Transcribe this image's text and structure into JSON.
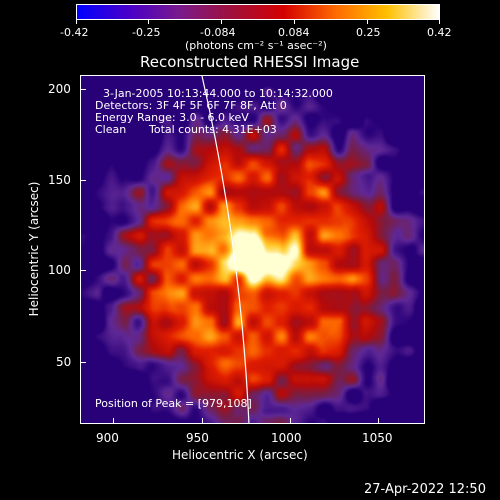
{
  "colorbar": {
    "ticks": [
      "-0.42",
      "-0.25",
      "-0.084",
      "0.084",
      "0.25",
      "0.42"
    ],
    "units": "(photons cm⁻² s⁻¹ asec⁻²)",
    "colors": [
      "#0000ff",
      "#4a00c8",
      "#7a1a8a",
      "#a0103a",
      "#d40000",
      "#ff6a00",
      "#ffc000",
      "#ffffff"
    ]
  },
  "plot": {
    "title": "Reconstructed RHESSI Image",
    "xlabel": "Heliocentric X (arcsec)",
    "ylabel": "Heliocentric Y (arcsec)",
    "xticks": [
      "900",
      "950",
      "1000",
      "1050"
    ],
    "yticks": [
      "200",
      "150",
      "100",
      "50"
    ],
    "xrange": [
      881,
      1072
    ],
    "yrange": [
      16,
      209
    ],
    "info": {
      "time": "3-Jan-2005 10:13:44.000 to 10:14:32.000",
      "detectors": "Detectors: 3F 4F 5F 6F 7F 8F, Att 0",
      "energy": "Energy Range: 3.0 - 6.0 keV",
      "clean": "Clean",
      "counts": "Total counts: 4.31E+03"
    },
    "peak": "Position of Peak = [979,108]",
    "peak_xy": [
      979,
      108
    ]
  },
  "footer": {
    "timestamp": "27-Apr-2022 12:50"
  }
}
